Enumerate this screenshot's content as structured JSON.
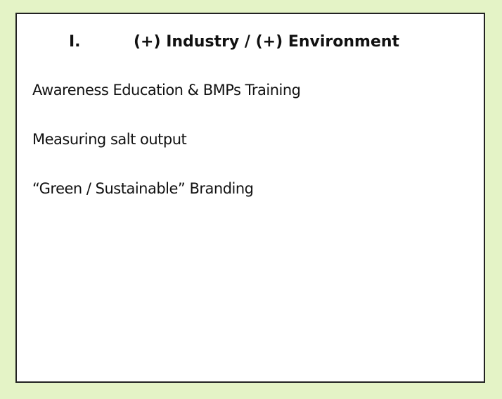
{
  "heading": {
    "numeral": "I.",
    "title": "(+) Industry / (+) Environment"
  },
  "items": [
    "Awareness Education & BMPs Training",
    "Measuring salt output",
    "“Green / Sustainable” Branding"
  ]
}
